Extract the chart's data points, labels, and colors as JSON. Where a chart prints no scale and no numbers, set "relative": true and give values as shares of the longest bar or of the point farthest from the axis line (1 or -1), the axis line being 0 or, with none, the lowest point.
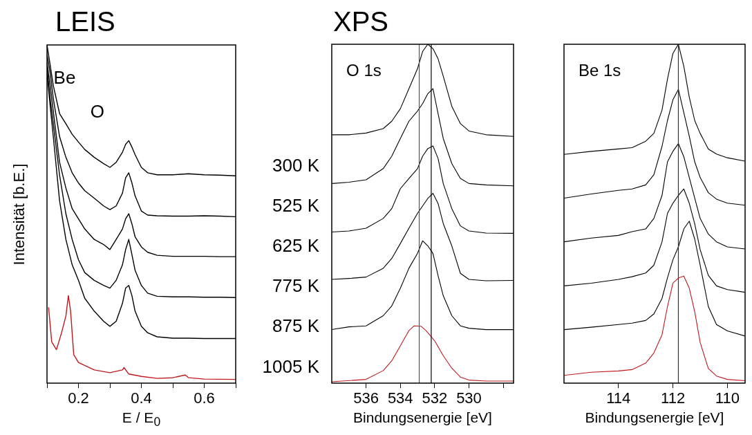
{
  "chart_data": [
    {
      "type": "line",
      "title": "LEIS",
      "xlabel": "E / E$_{0}$",
      "ylabel": "Intensität [b.E.]",
      "relative": true,
      "xlim": [
        0.1,
        0.7
      ],
      "xticks": [
        {
          "value": 0.1,
          "label": null
        },
        0.2,
        {
          "value": 0.3,
          "label": null
        },
        0.4,
        {
          "value": 0.5,
          "label": null
        },
        0.6,
        {
          "value": 0.7,
          "label": null
        }
      ],
      "x": [
        0.1,
        0.11,
        0.12,
        0.14,
        0.16,
        0.18,
        0.2,
        0.22,
        0.25,
        0.28,
        0.3,
        0.32,
        0.34,
        0.35,
        0.36,
        0.37,
        0.38,
        0.4,
        0.42,
        0.45,
        0.5,
        0.55,
        0.6,
        0.65,
        0.7
      ],
      "series": [
        {
          "color": "#000000",
          "values": [
            1.0,
            0.941,
            0.88,
            0.797,
            0.767,
            0.736,
            0.713,
            0.691,
            0.668,
            0.649,
            0.638,
            0.653,
            0.683,
            0.706,
            0.717,
            0.698,
            0.676,
            0.638,
            0.622,
            0.616,
            0.616,
            0.619,
            0.616,
            0.615,
            0.613
          ]
        },
        {
          "color": "#000000",
          "values": [
            0.971,
            0.918,
            0.842,
            0.729,
            0.668,
            0.622,
            0.592,
            0.569,
            0.547,
            0.524,
            0.513,
            0.524,
            0.562,
            0.607,
            0.622,
            0.592,
            0.554,
            0.509,
            0.497,
            0.495,
            0.494,
            0.494,
            0.495,
            0.494,
            0.492
          ]
        },
        {
          "color": "#000000",
          "values": [
            0.948,
            0.88,
            0.804,
            0.653,
            0.577,
            0.516,
            0.486,
            0.456,
            0.425,
            0.41,
            0.395,
            0.425,
            0.456,
            0.486,
            0.501,
            0.471,
            0.433,
            0.403,
            0.387,
            0.378,
            0.375,
            0.375,
            0.375,
            0.374,
            0.374
          ]
        },
        {
          "color": "#000000",
          "values": [
            0.933,
            0.842,
            0.767,
            0.615,
            0.501,
            0.425,
            0.365,
            0.327,
            0.304,
            0.289,
            0.281,
            0.304,
            0.35,
            0.395,
            0.425,
            0.38,
            0.334,
            0.289,
            0.266,
            0.257,
            0.255,
            0.255,
            0.254,
            0.254,
            0.253
          ]
        },
        {
          "color": "#000000",
          "values": [
            0.918,
            0.82,
            0.729,
            0.539,
            0.425,
            0.35,
            0.304,
            0.251,
            0.213,
            0.183,
            0.168,
            0.183,
            0.236,
            0.281,
            0.289,
            0.259,
            0.213,
            0.168,
            0.149,
            0.137,
            0.133,
            0.133,
            0.132,
            0.132,
            0.132
          ]
        },
        {
          "color": "#c0181d",
          "x": [
            0.105,
            0.115,
            0.13,
            0.145,
            0.16,
            0.168,
            0.175,
            0.185,
            0.2,
            0.25,
            0.3,
            0.34,
            0.345,
            0.36,
            0.4,
            0.45,
            0.5,
            0.54,
            0.55,
            0.6,
            0.7
          ],
          "values": [
            0.224,
            0.122,
            0.099,
            0.145,
            0.198,
            0.259,
            0.213,
            0.084,
            0.061,
            0.039,
            0.031,
            0.039,
            0.046,
            0.027,
            0.02,
            0.014,
            0.016,
            0.024,
            0.016,
            0.012,
            0.011
          ]
        }
      ],
      "annotations": [
        "Be",
        "O"
      ]
    },
    {
      "type": "line",
      "title": "XPS",
      "xlabel": "Bindungsenergie [eV]",
      "relative": true,
      "xlim": [
        538,
        527.4
      ],
      "xticks": [
        536,
        534,
        532,
        530,
        {
          "value": 528,
          "label": null
        }
      ],
      "x": [
        538,
        537,
        536,
        535,
        534.5,
        534,
        533.5,
        533,
        532.7,
        532.4,
        532.1,
        531.8,
        531.5,
        531,
        530.5,
        530,
        529,
        527.4
      ],
      "series": [
        {
          "color": "#000000",
          "values": [
            0.733,
            0.733,
            0.738,
            0.751,
            0.773,
            0.81,
            0.869,
            0.928,
            0.979,
            1.0,
            0.987,
            0.957,
            0.906,
            0.817,
            0.766,
            0.744,
            0.733,
            0.728
          ]
        },
        {
          "color": "#000000",
          "values": [
            0.589,
            0.593,
            0.6,
            0.633,
            0.67,
            0.722,
            0.773,
            0.803,
            0.825,
            0.854,
            0.869,
            0.795,
            0.722,
            0.648,
            0.604,
            0.589,
            0.585,
            0.582
          ]
        },
        {
          "color": "#000000",
          "values": [
            0.446,
            0.449,
            0.457,
            0.486,
            0.515,
            0.574,
            0.604,
            0.633,
            0.67,
            0.692,
            0.7,
            0.663,
            0.589,
            0.515,
            0.464,
            0.449,
            0.443,
            0.442
          ]
        },
        {
          "color": "#000000",
          "values": [
            0.306,
            0.309,
            0.313,
            0.339,
            0.368,
            0.412,
            0.457,
            0.501,
            0.523,
            0.545,
            0.56,
            0.53,
            0.471,
            0.405,
            0.324,
            0.306,
            0.302,
            0.303
          ]
        },
        {
          "color": "#000000",
          "values": [
            0.158,
            0.166,
            0.169,
            0.199,
            0.228,
            0.28,
            0.339,
            0.383,
            0.42,
            0.405,
            0.383,
            0.317,
            0.258,
            0.199,
            0.169,
            0.162,
            0.158,
            0.158
          ]
        },
        {
          "color": "#c0181d",
          "x": [
            538,
            536,
            535,
            534.5,
            534,
            533.5,
            533.2,
            532.8,
            532.5,
            532,
            531.5,
            531,
            530.5,
            530,
            529,
            527.4
          ],
          "values": [
            0.004,
            0.011,
            0.037,
            0.066,
            0.11,
            0.155,
            0.169,
            0.168,
            0.155,
            0.125,
            0.081,
            0.044,
            0.018,
            0.009,
            0.006,
            0.006
          ]
        }
      ],
      "ref_lines": [
        {
          "axis": "x",
          "value": 532.2,
          "color": "#000000"
        },
        {
          "axis": "x",
          "value": 532.9,
          "color": "#555555"
        }
      ],
      "annotations": [
        "O 1s",
        "300 K",
        "525 K",
        "625 K",
        "775 K",
        "875 K",
        "1005 K"
      ]
    },
    {
      "type": "line",
      "xlabel": "Bindungsenergie [eV]",
      "relative": true,
      "xlim": [
        116,
        109.35
      ],
      "xticks": [
        114,
        112,
        110
      ],
      "x": [
        116,
        115,
        114,
        113.5,
        113,
        112.7,
        112.4,
        112.2,
        112,
        111.8,
        111.6,
        111.4,
        111.2,
        111,
        110.7,
        110.4,
        110,
        109.35
      ],
      "series": [
        {
          "color": "#000000",
          "values": [
            0.675,
            0.684,
            0.691,
            0.695,
            0.714,
            0.737,
            0.806,
            0.897,
            0.973,
            1.0,
            0.935,
            0.844,
            0.775,
            0.737,
            0.691,
            0.676,
            0.665,
            0.655
          ]
        },
        {
          "color": "#000000",
          "values": [
            0.546,
            0.558,
            0.569,
            0.573,
            0.585,
            0.615,
            0.699,
            0.775,
            0.836,
            0.867,
            0.798,
            0.729,
            0.653,
            0.607,
            0.562,
            0.543,
            0.531,
            0.525
          ]
        },
        {
          "color": "#000000",
          "values": [
            0.417,
            0.428,
            0.436,
            0.447,
            0.455,
            0.486,
            0.554,
            0.653,
            0.684,
            0.707,
            0.668,
            0.607,
            0.546,
            0.486,
            0.44,
            0.417,
            0.402,
            0.396
          ]
        },
        {
          "color": "#000000",
          "values": [
            0.287,
            0.295,
            0.306,
            0.314,
            0.325,
            0.348,
            0.417,
            0.501,
            0.531,
            0.554,
            0.573,
            0.531,
            0.47,
            0.394,
            0.318,
            0.287,
            0.276,
            0.268
          ]
        },
        {
          "color": "#000000",
          "values": [
            0.158,
            0.165,
            0.173,
            0.177,
            0.185,
            0.204,
            0.25,
            0.311,
            0.364,
            0.402,
            0.455,
            0.478,
            0.425,
            0.348,
            0.226,
            0.173,
            0.154,
            0.139
          ]
        },
        {
          "color": "#c0181d",
          "values": [
            0.023,
            0.032,
            0.036,
            0.04,
            0.059,
            0.089,
            0.143,
            0.226,
            0.295,
            0.31,
            0.316,
            0.28,
            0.211,
            0.12,
            0.043,
            0.021,
            0.011,
            0.007
          ]
        }
      ],
      "ref_lines": [
        {
          "axis": "x",
          "value": 111.8,
          "color": "#333333"
        }
      ],
      "annotations": [
        "Be 1s"
      ]
    }
  ]
}
